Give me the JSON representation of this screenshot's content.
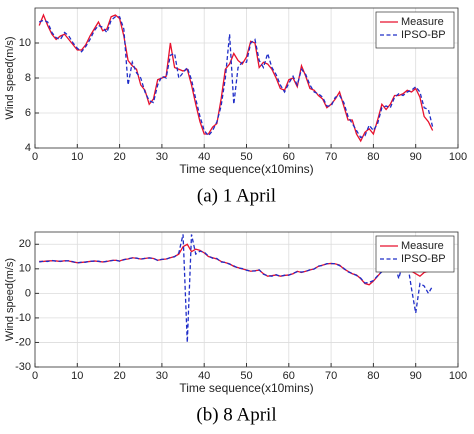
{
  "chart_data": [
    {
      "type": "line",
      "caption": "(a) 1 April",
      "xlabel": "Time sequence(x10mins)",
      "ylabel": "Wind speed(m/s)",
      "xlim": [
        0,
        100
      ],
      "xticks": [
        0,
        10,
        20,
        30,
        40,
        50,
        60,
        70,
        80,
        90,
        100
      ],
      "ylim": [
        4,
        12
      ],
      "yticks": [
        4,
        6,
        8,
        10
      ],
      "grid": true,
      "legend": "northeast",
      "x": [
        1,
        2,
        3,
        4,
        5,
        6,
        7,
        8,
        9,
        10,
        11,
        12,
        13,
        14,
        15,
        16,
        17,
        18,
        19,
        20,
        21,
        22,
        23,
        24,
        25,
        26,
        27,
        28,
        29,
        30,
        31,
        32,
        33,
        34,
        35,
        36,
        37,
        38,
        39,
        40,
        41,
        42,
        43,
        44,
        45,
        46,
        47,
        48,
        49,
        50,
        51,
        52,
        53,
        54,
        55,
        56,
        57,
        58,
        59,
        60,
        61,
        62,
        63,
        64,
        65,
        66,
        67,
        68,
        69,
        70,
        71,
        72,
        73,
        74,
        75,
        76,
        77,
        78,
        79,
        80,
        81,
        82,
        83,
        84,
        85,
        86,
        87,
        88,
        89,
        90,
        91,
        92,
        93,
        94
      ],
      "series": [
        {
          "name": "Measure",
          "color": "#e8112d",
          "dash": false,
          "values": [
            11.0,
            11.6,
            11.0,
            10.5,
            10.2,
            10.4,
            10.5,
            10.2,
            9.9,
            9.6,
            9.6,
            9.9,
            10.4,
            10.8,
            11.2,
            10.7,
            10.8,
            11.5,
            11.6,
            11.4,
            10.4,
            9.0,
            8.7,
            8.5,
            7.6,
            7.3,
            6.5,
            6.8,
            7.9,
            8.0,
            8.1,
            10.0,
            8.6,
            8.5,
            8.4,
            8.5,
            7.6,
            6.5,
            5.5,
            4.8,
            4.8,
            5.2,
            5.4,
            6.8,
            8.5,
            8.8,
            9.4,
            9.0,
            8.8,
            9.2,
            10.1,
            10.0,
            8.6,
            8.9,
            8.8,
            8.5,
            8.0,
            7.4,
            7.3,
            7.9,
            8.0,
            7.5,
            8.7,
            8.1,
            7.4,
            7.3,
            7.0,
            6.8,
            6.3,
            6.5,
            6.8,
            7.2,
            6.4,
            5.6,
            5.6,
            4.8,
            4.4,
            4.9,
            5.1,
            4.8,
            5.6,
            6.5,
            6.2,
            6.5,
            7.0,
            7.0,
            7.1,
            7.3,
            7.2,
            7.4,
            6.9,
            5.8,
            5.5,
            5.0
          ]
        },
        {
          "name": "IPSO-BP",
          "color": "#1f2dc8",
          "dash": true,
          "values": [
            11.2,
            11.3,
            11.2,
            10.6,
            10.3,
            10.2,
            10.6,
            10.4,
            10.0,
            9.7,
            9.5,
            9.8,
            10.2,
            10.7,
            11.0,
            10.9,
            10.6,
            11.3,
            11.5,
            11.5,
            10.8,
            7.6,
            8.9,
            8.3,
            8.0,
            7.2,
            6.7,
            6.6,
            7.6,
            8.1,
            8.0,
            9.3,
            9.4,
            8.0,
            8.3,
            8.6,
            7.9,
            6.8,
            5.8,
            5.0,
            4.7,
            5.0,
            5.5,
            6.4,
            8.0,
            10.5,
            6.5,
            8.6,
            8.9,
            8.9,
            10.0,
            10.2,
            9.0,
            8.6,
            9.4,
            8.6,
            8.2,
            7.6,
            7.2,
            7.7,
            8.1,
            7.6,
            8.5,
            8.2,
            7.6,
            7.2,
            7.1,
            6.9,
            6.4,
            6.4,
            6.9,
            7.0,
            6.6,
            5.8,
            5.4,
            5.0,
            4.6,
            4.7,
            5.3,
            5.0,
            5.4,
            6.3,
            6.4,
            6.3,
            6.9,
            7.1,
            7.0,
            7.2,
            7.3,
            7.5,
            7.2,
            6.3,
            6.2,
            5.2
          ]
        }
      ]
    },
    {
      "type": "line",
      "caption": "(b) 8 April",
      "xlabel": "Time sequence(x10mins)",
      "ylabel": "Wind speed(m/s)",
      "xlim": [
        0,
        100
      ],
      "xticks": [
        0,
        10,
        20,
        30,
        40,
        50,
        60,
        70,
        80,
        90,
        100
      ],
      "ylim": [
        -30,
        25
      ],
      "yticks": [
        -30,
        -20,
        -10,
        0,
        10,
        20
      ],
      "grid": true,
      "legend": "northeast",
      "x": [
        1,
        2,
        3,
        4,
        5,
        6,
        7,
        8,
        9,
        10,
        11,
        12,
        13,
        14,
        15,
        16,
        17,
        18,
        19,
        20,
        21,
        22,
        23,
        24,
        25,
        26,
        27,
        28,
        29,
        30,
        31,
        32,
        33,
        34,
        35,
        36,
        37,
        38,
        39,
        40,
        41,
        42,
        43,
        44,
        45,
        46,
        47,
        48,
        49,
        50,
        51,
        52,
        53,
        54,
        55,
        56,
        57,
        58,
        59,
        60,
        61,
        62,
        63,
        64,
        65,
        66,
        67,
        68,
        69,
        70,
        71,
        72,
        73,
        74,
        75,
        76,
        77,
        78,
        79,
        80,
        81,
        82,
        83,
        84,
        85,
        86,
        87,
        88,
        89,
        90,
        91,
        92,
        93,
        94
      ],
      "series": [
        {
          "name": "Measure",
          "color": "#e8112d",
          "dash": false,
          "values": [
            13,
            13,
            13.2,
            13.3,
            13.2,
            13,
            13.3,
            13.2,
            12.8,
            12.5,
            12.6,
            12.8,
            13,
            13.2,
            13,
            12.8,
            13,
            13.4,
            13.5,
            13.2,
            13.8,
            14,
            14.5,
            14.3,
            14,
            14.2,
            14.5,
            14.2,
            13.5,
            13.8,
            14,
            14.5,
            15,
            16,
            19,
            20,
            17,
            18,
            17.5,
            16.5,
            15,
            14.5,
            14,
            13,
            12.5,
            12,
            11,
            10.5,
            10,
            9.5,
            9,
            9.2,
            9.5,
            8,
            7,
            7.2,
            7.5,
            7,
            7.3,
            7.5,
            8,
            9,
            8.5,
            9,
            9.5,
            10,
            11,
            11.5,
            12,
            12.2,
            12,
            11.5,
            10,
            9,
            8,
            7.5,
            6,
            4,
            3.5,
            5,
            7,
            9,
            12,
            13,
            12,
            10,
            12.5,
            11,
            9,
            8,
            7,
            8.5,
            9,
            9
          ]
        },
        {
          "name": "IPSO-BP",
          "color": "#1f2dc8",
          "dash": true,
          "values": [
            12.8,
            13.1,
            13,
            13.4,
            13.1,
            13.1,
            13.2,
            13.3,
            12.9,
            12.4,
            12.7,
            12.7,
            13.1,
            13.1,
            13.1,
            12.7,
            13.1,
            13.3,
            13.6,
            13.1,
            13.7,
            14.1,
            14.4,
            14.4,
            13.9,
            14.3,
            14.4,
            14.3,
            13.4,
            13.9,
            13.9,
            14.6,
            14.9,
            16.5,
            24,
            -20,
            24,
            16,
            17.2,
            16.8,
            15.2,
            14.3,
            14.2,
            12.8,
            12.6,
            11.9,
            11.2,
            10.3,
            10.1,
            9.4,
            9.1,
            9.1,
            9.6,
            7.8,
            7.2,
            7.0,
            7.6,
            6.9,
            7.4,
            7.4,
            8.2,
            8.8,
            8.7,
            8.9,
            9.6,
            9.9,
            11.1,
            11.4,
            12.1,
            12.1,
            12.1,
            11.3,
            10.2,
            8.8,
            8.1,
            7.3,
            6.2,
            4.2,
            4.5,
            5.2,
            7.2,
            8.8,
            14,
            12,
            12.3,
            6,
            12.8,
            13,
            2,
            -8,
            4,
            3,
            0,
            3
          ]
        }
      ]
    }
  ]
}
